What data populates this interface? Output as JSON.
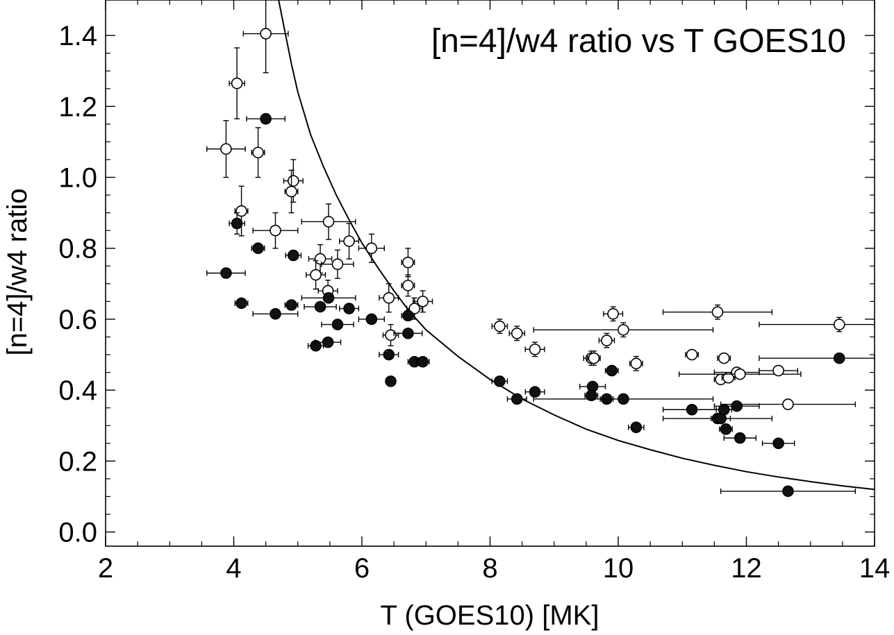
{
  "chart_data": {
    "type": "scatter",
    "title": "[n=4]/w4 ratio vs T GOES10",
    "xlabel": "T (GOES10) [MK]",
    "ylabel": "[n=4]/w4 ratio",
    "xlim": [
      2,
      14
    ],
    "ylim": [
      -0.04,
      1.5
    ],
    "xticks": [
      2,
      4,
      6,
      8,
      10,
      12,
      14
    ],
    "yticks": [
      0.0,
      0.2,
      0.4,
      0.6,
      0.8,
      1.0,
      1.2,
      1.4
    ],
    "xtick_labels": [
      "2",
      "4",
      "6",
      "8",
      "10",
      "12",
      "14"
    ],
    "ytick_labels": [
      "0.0",
      "0.2",
      "0.4",
      "0.6",
      "0.8",
      "1.0",
      "1.2",
      "1.4"
    ],
    "series": [
      {
        "name": "open",
        "marker": "open-circle",
        "points": [
          {
            "x": 4.5,
            "y": 1.405,
            "xerr": 0.35,
            "yerr": 0.11
          },
          {
            "x": 4.05,
            "y": 1.265,
            "xerr": 0.12,
            "yerr": 0.1
          },
          {
            "x": 3.88,
            "y": 1.08,
            "xerr": 0.3,
            "yerr": 0.08
          },
          {
            "x": 4.38,
            "y": 1.07,
            "xerr": 0.1,
            "yerr": 0.07
          },
          {
            "x": 4.93,
            "y": 0.99,
            "xerr": 0.15,
            "yerr": 0.06
          },
          {
            "x": 4.9,
            "y": 0.96,
            "xerr": 0.1,
            "yerr": 0.06
          },
          {
            "x": 4.12,
            "y": 0.905,
            "xerr": 0.1,
            "yerr": 0.07
          },
          {
            "x": 4.65,
            "y": 0.85,
            "xerr": 0.35,
            "yerr": 0.05
          },
          {
            "x": 5.48,
            "y": 0.875,
            "xerr": 0.42,
            "yerr": 0.05
          },
          {
            "x": 5.8,
            "y": 0.82,
            "xerr": 0.15,
            "yerr": 0.05
          },
          {
            "x": 6.15,
            "y": 0.8,
            "xerr": 0.2,
            "yerr": 0.04
          },
          {
            "x": 5.35,
            "y": 0.77,
            "xerr": 0.18,
            "yerr": 0.04
          },
          {
            "x": 5.62,
            "y": 0.755,
            "xerr": 0.25,
            "yerr": 0.04
          },
          {
            "x": 5.28,
            "y": 0.725,
            "xerr": 0.15,
            "yerr": 0.04
          },
          {
            "x": 5.47,
            "y": 0.68,
            "xerr": 0.15,
            "yerr": 0.03
          },
          {
            "x": 6.72,
            "y": 0.76,
            "xerr": 0.1,
            "yerr": 0.04
          },
          {
            "x": 6.72,
            "y": 0.695,
            "xerr": 0.1,
            "yerr": 0.03
          },
          {
            "x": 6.42,
            "y": 0.66,
            "xerr": 0.15,
            "yerr": 0.04
          },
          {
            "x": 6.95,
            "y": 0.65,
            "xerr": 0.15,
            "yerr": 0.03
          },
          {
            "x": 6.82,
            "y": 0.63,
            "xerr": 0.12,
            "yerr": 0.03
          },
          {
            "x": 6.45,
            "y": 0.555,
            "xerr": 0.12,
            "yerr": 0.03
          },
          {
            "x": 8.15,
            "y": 0.58,
            "xerr": 0.12,
            "yerr": 0.02
          },
          {
            "x": 8.42,
            "y": 0.56,
            "xerr": 0.12,
            "yerr": 0.02
          },
          {
            "x": 8.7,
            "y": 0.515,
            "xerr": 0.15,
            "yerr": 0.02
          },
          {
            "x": 9.92,
            "y": 0.615,
            "xerr": 0.15,
            "yerr": 0.02
          },
          {
            "x": 9.82,
            "y": 0.54,
            "xerr": 0.12,
            "yerr": 0.02
          },
          {
            "x": 10.08,
            "y": 0.57,
            "xerr": 1.4,
            "yerr": 0.02
          },
          {
            "x": 9.58,
            "y": 0.49,
            "xerr": 0.12,
            "yerr": 0.02
          },
          {
            "x": 9.62,
            "y": 0.49,
            "xerr": 0.1,
            "yerr": 0.02
          },
          {
            "x": 10.28,
            "y": 0.475,
            "xerr": 0.1,
            "yerr": 0.02
          },
          {
            "x": 11.15,
            "y": 0.5,
            "xerr": 0.1,
            "yerr": 0.01
          },
          {
            "x": 11.55,
            "y": 0.62,
            "xerr": 0.85,
            "yerr": 0.02
          },
          {
            "x": 11.65,
            "y": 0.49,
            "xerr": 0.1,
            "yerr": 0.01
          },
          {
            "x": 11.6,
            "y": 0.43,
            "xerr": 0.1,
            "yerr": 0.01
          },
          {
            "x": 11.72,
            "y": 0.435,
            "xerr": 0.1,
            "yerr": 0.01
          },
          {
            "x": 11.85,
            "y": 0.45,
            "xerr": 0.35,
            "yerr": 0.01
          },
          {
            "x": 11.9,
            "y": 0.445,
            "xerr": 0.95,
            "yerr": 0.01
          },
          {
            "x": 12.5,
            "y": 0.455,
            "xerr": 0.3,
            "yerr": 0.01
          },
          {
            "x": 12.65,
            "y": 0.36,
            "xerr": 1.05,
            "yerr": 0.01
          },
          {
            "x": 13.45,
            "y": 0.585,
            "xerr": 1.25,
            "yerr": 0.02
          }
        ]
      },
      {
        "name": "filled",
        "marker": "filled-circle",
        "points": [
          {
            "x": 4.5,
            "y": 1.165,
            "xerr": 0.3,
            "yerr": 0.01
          },
          {
            "x": 4.05,
            "y": 0.87,
            "xerr": 0.12,
            "yerr": 0.03
          },
          {
            "x": 4.38,
            "y": 0.8,
            "xerr": 0.1,
            "yerr": 0.01
          },
          {
            "x": 4.93,
            "y": 0.78,
            "xerr": 0.12,
            "yerr": 0.01
          },
          {
            "x": 3.88,
            "y": 0.73,
            "xerr": 0.3,
            "yerr": 0.01
          },
          {
            "x": 4.12,
            "y": 0.645,
            "xerr": 0.1,
            "yerr": 0.01
          },
          {
            "x": 4.65,
            "y": 0.615,
            "xerr": 0.35,
            "yerr": 0.01
          },
          {
            "x": 4.9,
            "y": 0.64,
            "xerr": 0.1,
            "yerr": 0.01
          },
          {
            "x": 5.35,
            "y": 0.635,
            "xerr": 0.25,
            "yerr": 0.01
          },
          {
            "x": 5.48,
            "y": 0.66,
            "xerr": 0.42,
            "yerr": 0.01
          },
          {
            "x": 5.8,
            "y": 0.63,
            "xerr": 0.15,
            "yerr": 0.01
          },
          {
            "x": 5.62,
            "y": 0.585,
            "xerr": 0.25,
            "yerr": 0.01
          },
          {
            "x": 6.15,
            "y": 0.6,
            "xerr": 0.2,
            "yerr": 0.01
          },
          {
            "x": 5.28,
            "y": 0.525,
            "xerr": 0.12,
            "yerr": 0.01
          },
          {
            "x": 5.47,
            "y": 0.535,
            "xerr": 0.2,
            "yerr": 0.01
          },
          {
            "x": 6.72,
            "y": 0.61,
            "xerr": 0.1,
            "yerr": 0.01
          },
          {
            "x": 6.72,
            "y": 0.56,
            "xerr": 0.22,
            "yerr": 0.01
          },
          {
            "x": 6.42,
            "y": 0.5,
            "xerr": 0.15,
            "yerr": 0.01
          },
          {
            "x": 6.82,
            "y": 0.48,
            "xerr": 0.1,
            "yerr": 0.01
          },
          {
            "x": 6.95,
            "y": 0.48,
            "xerr": 0.1,
            "yerr": 0.01
          },
          {
            "x": 6.45,
            "y": 0.425,
            "xerr": 0.05,
            "yerr": 0.01
          },
          {
            "x": 8.15,
            "y": 0.425,
            "xerr": 0.12,
            "yerr": 0.01
          },
          {
            "x": 8.42,
            "y": 0.375,
            "xerr": 0.15,
            "yerr": 0.01
          },
          {
            "x": 8.7,
            "y": 0.395,
            "xerr": 0.15,
            "yerr": 0.01
          },
          {
            "x": 9.6,
            "y": 0.41,
            "xerr": 0.2,
            "yerr": 0.01
          },
          {
            "x": 9.58,
            "y": 0.385,
            "xerr": 0.1,
            "yerr": 0.01
          },
          {
            "x": 9.9,
            "y": 0.455,
            "xerr": 0.1,
            "yerr": 0.01
          },
          {
            "x": 9.82,
            "y": 0.375,
            "xerr": 0.1,
            "yerr": 0.01
          },
          {
            "x": 10.08,
            "y": 0.375,
            "xerr": 1.4,
            "yerr": 0.01
          },
          {
            "x": 10.28,
            "y": 0.295,
            "xerr": 0.12,
            "yerr": 0.01
          },
          {
            "x": 11.15,
            "y": 0.345,
            "xerr": 0.45,
            "yerr": 0.01
          },
          {
            "x": 11.55,
            "y": 0.32,
            "xerr": 0.85,
            "yerr": 0.01
          },
          {
            "x": 11.6,
            "y": 0.32,
            "xerr": 0.15,
            "yerr": 0.01
          },
          {
            "x": 11.65,
            "y": 0.345,
            "xerr": 0.12,
            "yerr": 0.01
          },
          {
            "x": 11.85,
            "y": 0.355,
            "xerr": 0.35,
            "yerr": 0.01
          },
          {
            "x": 11.68,
            "y": 0.29,
            "xerr": 0.1,
            "yerr": 0.01
          },
          {
            "x": 11.9,
            "y": 0.265,
            "xerr": 0.25,
            "yerr": 0.01
          },
          {
            "x": 12.5,
            "y": 0.25,
            "xerr": 0.25,
            "yerr": 0.01
          },
          {
            "x": 12.65,
            "y": 0.115,
            "xerr": 1.05,
            "yerr": 0.01
          },
          {
            "x": 13.45,
            "y": 0.49,
            "xerr": 1.25,
            "yerr": 0.01
          }
        ]
      }
    ],
    "curve": {
      "name": "model",
      "x": [
        4.6,
        4.7,
        4.8,
        4.9,
        5.0,
        5.2,
        5.4,
        5.6,
        5.8,
        6.0,
        6.25,
        6.5,
        6.75,
        7.0,
        7.5,
        8.0,
        8.5,
        9.0,
        9.5,
        10.0,
        10.5,
        11.0,
        11.5,
        12.0,
        12.5,
        13.0,
        13.5,
        14.0
      ],
      "y": [
        1.57,
        1.5,
        1.41,
        1.32,
        1.24,
        1.12,
        1.03,
        0.95,
        0.88,
        0.815,
        0.745,
        0.68,
        0.62,
        0.57,
        0.495,
        0.43,
        0.375,
        0.33,
        0.29,
        0.258,
        0.232,
        0.208,
        0.188,
        0.17,
        0.155,
        0.142,
        0.13,
        0.12
      ]
    }
  }
}
